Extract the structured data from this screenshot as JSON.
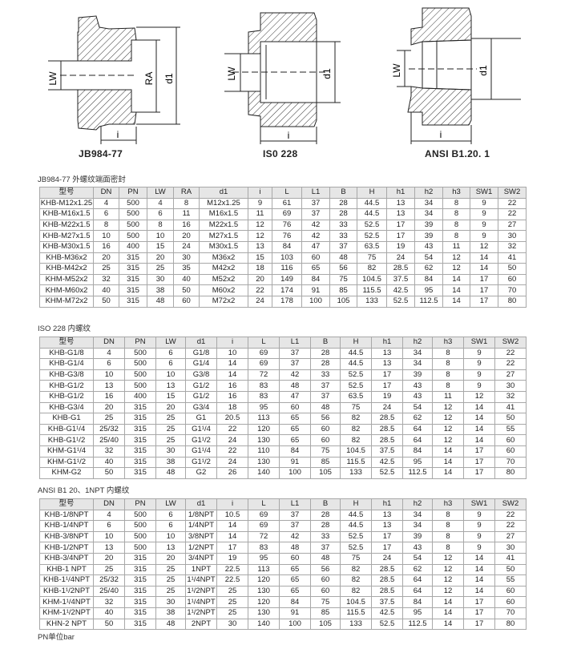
{
  "figures": [
    {
      "label": "JB984-77",
      "dims": [
        "LW",
        "RA",
        "d1",
        "i"
      ]
    },
    {
      "label": "IS0 228",
      "dims": [
        "LW",
        "d1",
        "i"
      ]
    },
    {
      "label": "ANSI  B1.20. 1",
      "dims": [
        "LW",
        "d1",
        "i"
      ]
    }
  ],
  "tables": [
    {
      "caption": "JB984-77 外螺纹端面密封",
      "headers": [
        "型号",
        "DN",
        "PN",
        "LW",
        "RA",
        "d1",
        "i",
        "L",
        "L1",
        "B",
        "H",
        "h1",
        "h2",
        "h3",
        "SW1",
        "SW2"
      ],
      "rows": [
        [
          "KHB-M12x1.25",
          "4",
          "500",
          "4",
          "8",
          "M12x1.25",
          "9",
          "61",
          "37",
          "28",
          "44.5",
          "13",
          "34",
          "8",
          "9",
          "22"
        ],
        [
          "KHB-M16x1.5",
          "6",
          "500",
          "6",
          "11",
          "M16x1.5",
          "11",
          "69",
          "37",
          "28",
          "44.5",
          "13",
          "34",
          "8",
          "9",
          "22"
        ],
        [
          "KHB-M22x1.5",
          "8",
          "500",
          "8",
          "16",
          "M22x1.5",
          "12",
          "76",
          "42",
          "33",
          "52.5",
          "17",
          "39",
          "8",
          "9",
          "27"
        ],
        [
          "KHB-M27x1.5",
          "10",
          "500",
          "10",
          "20",
          "M27x1.5",
          "12",
          "76",
          "42",
          "33",
          "52.5",
          "17",
          "39",
          "8",
          "9",
          "30"
        ],
        [
          "KHB-M30x1.5",
          "16",
          "400",
          "15",
          "24",
          "M30x1.5",
          "13",
          "84",
          "47",
          "37",
          "63.5",
          "19",
          "43",
          "11",
          "12",
          "32"
        ],
        [
          "KHB-M36x2",
          "20",
          "315",
          "20",
          "30",
          "M36x2",
          "15",
          "103",
          "60",
          "48",
          "75",
          "24",
          "54",
          "12",
          "14",
          "41"
        ],
        [
          "KHB-M42x2",
          "25",
          "315",
          "25",
          "35",
          "M42x2",
          "18",
          "116",
          "65",
          "56",
          "82",
          "28.5",
          "62",
          "12",
          "14",
          "50"
        ],
        [
          "KHM-M52x2",
          "32",
          "315",
          "30",
          "40",
          "M52x2",
          "20",
          "149",
          "84",
          "75",
          "104.5",
          "37.5",
          "84",
          "14",
          "17",
          "60"
        ],
        [
          "KHM-M60x2",
          "40",
          "315",
          "38",
          "50",
          "M60x2",
          "22",
          "174",
          "91",
          "85",
          "115.5",
          "42.5",
          "95",
          "14",
          "17",
          "70"
        ],
        [
          "KHM-M72x2",
          "50",
          "315",
          "48",
          "60",
          "M72x2",
          "24",
          "178",
          "100",
          "105",
          "133",
          "52.5",
          "112.5",
          "14",
          "17",
          "80"
        ]
      ]
    },
    {
      "caption": "ISO 228 内螺纹",
      "headers": [
        "型号",
        "DN",
        "PN",
        "LW",
        "d1",
        "i",
        "L",
        "L1",
        "B",
        "H",
        "h1",
        "h2",
        "h3",
        "SW1",
        "SW2"
      ],
      "rows": [
        [
          "KHB-G1/8",
          "4",
          "500",
          "6",
          "G1/8",
          "10",
          "69",
          "37",
          "28",
          "44.5",
          "13",
          "34",
          "8",
          "9",
          "22"
        ],
        [
          "KHB-G1/4",
          "6",
          "500",
          "6",
          "G1/4",
          "14",
          "69",
          "37",
          "28",
          "44.5",
          "13",
          "34",
          "8",
          "9",
          "22"
        ],
        [
          "KHB-G3/8",
          "10",
          "500",
          "10",
          "G3/8",
          "14",
          "72",
          "42",
          "33",
          "52.5",
          "17",
          "39",
          "8",
          "9",
          "27"
        ],
        [
          "KHB-G1/2",
          "13",
          "500",
          "13",
          "G1/2",
          "16",
          "83",
          "48",
          "37",
          "52.5",
          "17",
          "43",
          "8",
          "9",
          "30"
        ],
        [
          "KHB-G1/2",
          "16",
          "400",
          "15",
          "G1/2",
          "16",
          "83",
          "47",
          "37",
          "63.5",
          "19",
          "43",
          "11",
          "12",
          "32"
        ],
        [
          "KHB-G3/4",
          "20",
          "315",
          "20",
          "G3/4",
          "18",
          "95",
          "60",
          "48",
          "75",
          "24",
          "54",
          "12",
          "14",
          "41"
        ],
        [
          "KHB-G1",
          "25",
          "315",
          "25",
          "G1",
          "20.5",
          "113",
          "65",
          "56",
          "82",
          "28.5",
          "62",
          "12",
          "14",
          "50"
        ],
        [
          "KHB-G1¹/4",
          "25/32",
          "315",
          "25",
          "G1¹/4",
          "22",
          "120",
          "65",
          "60",
          "82",
          "28.5",
          "64",
          "12",
          "14",
          "55"
        ],
        [
          "KHB-G1¹/2",
          "25/40",
          "315",
          "25",
          "G1¹/2",
          "24",
          "130",
          "65",
          "60",
          "82",
          "28.5",
          "64",
          "12",
          "14",
          "60"
        ],
        [
          "KHM-G1¹/4",
          "32",
          "315",
          "30",
          "G1¹/4",
          "22",
          "110",
          "84",
          "75",
          "104.5",
          "37.5",
          "84",
          "14",
          "17",
          "60"
        ],
        [
          "KHM-G1¹/2",
          "40",
          "315",
          "38",
          "G1¹/2",
          "24",
          "130",
          "91",
          "85",
          "115.5",
          "42.5",
          "95",
          "14",
          "17",
          "70"
        ],
        [
          "KHM-G2",
          "50",
          "315",
          "48",
          "G2",
          "26",
          "140",
          "100",
          "105",
          "133",
          "52.5",
          "112.5",
          "14",
          "17",
          "80"
        ]
      ]
    },
    {
      "caption": "ANSI B1 20、1NPT 内螺纹",
      "headers": [
        "型号",
        "DN",
        "PN",
        "LW",
        "d1",
        "i",
        "L",
        "L1",
        "B",
        "H",
        "h1",
        "h2",
        "h3",
        "SW1",
        "SW2"
      ],
      "rows": [
        [
          "KHB-1/8NPT",
          "4",
          "500",
          "6",
          "1/8NPT",
          "10.5",
          "69",
          "37",
          "28",
          "44.5",
          "13",
          "34",
          "8",
          "9",
          "22"
        ],
        [
          "KHB-1/4NPT",
          "6",
          "500",
          "6",
          "1/4NPT",
          "14",
          "69",
          "37",
          "28",
          "44.5",
          "13",
          "34",
          "8",
          "9",
          "22"
        ],
        [
          "KHB-3/8NPT",
          "10",
          "500",
          "10",
          "3/8NPT",
          "14",
          "72",
          "42",
          "33",
          "52.5",
          "17",
          "39",
          "8",
          "9",
          "27"
        ],
        [
          "KHB-1/2NPT",
          "13",
          "500",
          "13",
          "1/2NPT",
          "17",
          "83",
          "48",
          "37",
          "52.5",
          "17",
          "43",
          "8",
          "9",
          "30"
        ],
        [
          "KHB-3/4NPT",
          "20",
          "315",
          "20",
          "3/4NPT",
          "19",
          "95",
          "60",
          "48",
          "75",
          "24",
          "54",
          "12",
          "14",
          "41"
        ],
        [
          "KHB-1 NPT",
          "25",
          "315",
          "25",
          "1NPT",
          "22.5",
          "113",
          "65",
          "56",
          "82",
          "28.5",
          "62",
          "12",
          "14",
          "50"
        ],
        [
          "KHB-1¹/4NPT",
          "25/32",
          "315",
          "25",
          "1¹/4NPT",
          "22.5",
          "120",
          "65",
          "60",
          "82",
          "28.5",
          "64",
          "12",
          "14",
          "55"
        ],
        [
          "KHB-1¹/2NPT",
          "25/40",
          "315",
          "25",
          "1¹/2NPT",
          "25",
          "130",
          "65",
          "60",
          "82",
          "28.5",
          "64",
          "12",
          "14",
          "60"
        ],
        [
          "KHM-1¹/4NPT",
          "32",
          "315",
          "30",
          "1¹/4NPT",
          "25",
          "120",
          "84",
          "75",
          "104.5",
          "37.5",
          "84",
          "14",
          "17",
          "60"
        ],
        [
          "KHM-1¹/2NPT",
          "40",
          "315",
          "38",
          "1¹/2NPT",
          "25",
          "130",
          "91",
          "85",
          "115.5",
          "42.5",
          "95",
          "14",
          "17",
          "70"
        ],
        [
          "KHN-2 NPT",
          "50",
          "315",
          "48",
          "2NPT",
          "30",
          "140",
          "100",
          "105",
          "133",
          "52.5",
          "112.5",
          "14",
          "17",
          "80"
        ]
      ]
    }
  ],
  "note": "PN单位bar"
}
